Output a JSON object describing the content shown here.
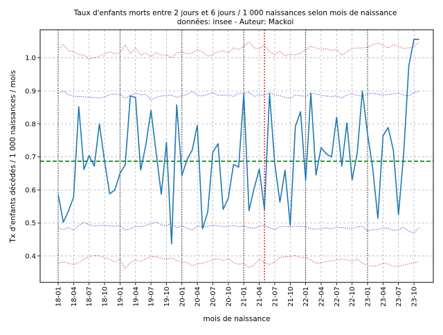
{
  "chart_data": {
    "type": "line",
    "title": "Taux d'enfants morts entre 2 jours et 6 jours / 1 000 naissances selon mois de naissance",
    "subtitle": "données: insee - Auteur: Mackoi",
    "xlabel": "mois de naissance",
    "ylabel": "Tx d'enfants décédés / 1 000 naissances / mois",
    "ylim": [
      0.32,
      1.085
    ],
    "yticks": [
      0.4,
      0.5,
      0.6,
      0.7,
      0.8,
      0.9,
      1.0
    ],
    "ytick_labels": [
      "0.4",
      "0.5",
      "0.6",
      "0.7",
      "0.8",
      "0.9",
      "1.0"
    ],
    "xtick_labels": [
      "18-01",
      "18-04",
      "18-07",
      "18-10",
      "19-01",
      "19-04",
      "19-07",
      "19-10",
      "20-01",
      "20-04",
      "20-07",
      "20-10",
      "21-01",
      "21-04",
      "21-07",
      "21-10",
      "22-01",
      "22-04",
      "22-07",
      "22-10",
      "23-01",
      "23-04",
      "23-07",
      "23-10"
    ],
    "grid": true,
    "mean_line": 0.687,
    "year_separators": [
      "18-01",
      "19-01",
      "20-01",
      "21-01",
      "22-01",
      "23-01"
    ],
    "highlight_month": "21-05",
    "months": [
      "18-01",
      "18-02",
      "18-03",
      "18-04",
      "18-05",
      "18-06",
      "18-07",
      "18-08",
      "18-09",
      "18-10",
      "18-11",
      "18-12",
      "19-01",
      "19-02",
      "19-03",
      "19-04",
      "19-05",
      "19-06",
      "19-07",
      "19-08",
      "19-09",
      "19-10",
      "19-11",
      "19-12",
      "20-01",
      "20-02",
      "20-03",
      "20-04",
      "20-05",
      "20-06",
      "20-07",
      "20-08",
      "20-09",
      "20-10",
      "20-11",
      "20-12",
      "21-01",
      "21-02",
      "21-03",
      "21-04",
      "21-05",
      "21-06",
      "21-07",
      "21-08",
      "21-09",
      "21-10",
      "21-11",
      "21-12",
      "22-01",
      "22-02",
      "22-03",
      "22-04",
      "22-05",
      "22-06",
      "22-07",
      "22-08",
      "22-09",
      "22-10",
      "22-11",
      "22-12",
      "23-01",
      "23-02",
      "23-03",
      "23-04",
      "23-05",
      "23-06",
      "23-07",
      "23-08",
      "23-09",
      "23-10",
      "23-11"
    ],
    "series": [
      {
        "values": [
          0.587,
          0.502,
          0.536,
          0.578,
          0.852,
          0.662,
          0.704,
          0.672,
          0.8,
          0.687,
          0.588,
          0.6,
          0.65,
          0.677,
          0.884,
          0.88,
          0.66,
          0.736,
          0.841,
          0.713,
          0.587,
          0.744,
          0.437,
          0.858,
          0.644,
          0.692,
          0.721,
          0.796,
          0.482,
          0.533,
          0.714,
          0.74,
          0.541,
          0.576,
          0.677,
          0.669,
          0.891,
          0.537,
          0.604,
          0.663,
          0.541,
          0.891,
          0.68,
          0.563,
          0.66,
          0.492,
          0.792,
          0.837,
          0.628,
          0.893,
          0.645,
          0.728,
          0.709,
          0.7,
          0.82,
          0.672,
          0.803,
          0.63,
          0.712,
          0.899,
          0.769,
          0.665,
          0.514,
          0.764,
          0.789,
          0.72,
          0.525,
          0.709,
          0.976,
          1.056,
          1.056
        ],
        "color": "#1f77b4"
      },
      {
        "values": [
          0.893,
          0.9,
          0.888,
          0.884,
          0.883,
          0.882,
          0.881,
          0.88,
          0.878,
          0.882,
          0.888,
          0.89,
          0.889,
          0.878,
          0.886,
          0.892,
          0.888,
          0.889,
          0.873,
          0.88,
          0.884,
          0.886,
          0.887,
          0.88,
          0.885,
          0.889,
          0.898,
          0.886,
          0.885,
          0.889,
          0.895,
          0.886,
          0.887,
          0.888,
          0.883,
          0.893,
          0.893,
          0.896,
          0.883,
          0.888,
          0.886,
          0.895,
          0.887,
          0.885,
          0.88,
          0.877,
          0.888,
          0.885,
          0.883,
          0.893,
          0.89,
          0.887,
          0.884,
          0.883,
          0.885,
          0.879,
          0.887,
          0.891,
          0.886,
          0.885,
          0.89,
          0.893,
          0.89,
          0.887,
          0.889,
          0.891,
          0.893,
          0.887,
          0.885,
          0.895,
          0.9
        ],
        "color": "#3333dd"
      },
      {
        "values": [
          0.486,
          0.48,
          0.486,
          0.479,
          0.492,
          0.502,
          0.495,
          0.491,
          0.492,
          0.493,
          0.491,
          0.49,
          0.491,
          0.478,
          0.482,
          0.49,
          0.488,
          0.493,
          0.497,
          0.503,
          0.494,
          0.493,
          0.498,
          0.486,
          0.491,
          0.484,
          0.478,
          0.491,
          0.487,
          0.49,
          0.493,
          0.491,
          0.489,
          0.49,
          0.492,
          0.489,
          0.49,
          0.486,
          0.484,
          0.49,
          0.493,
          0.485,
          0.481,
          0.488,
          0.49,
          0.487,
          0.49,
          0.489,
          0.488,
          0.482,
          0.481,
          0.483,
          0.485,
          0.482,
          0.487,
          0.486,
          0.484,
          0.483,
          0.488,
          0.49,
          0.476,
          0.48,
          0.479,
          0.485,
          0.484,
          0.477,
          0.48,
          0.487,
          0.475,
          0.47,
          0.486
        ],
        "color": "#3333dd"
      },
      {
        "values": [
          1.025,
          1.04,
          1.022,
          1.018,
          1.01,
          1.008,
          0.997,
          1.0,
          1.005,
          1.012,
          1.018,
          1.012,
          1.015,
          1.04,
          1.012,
          1.03,
          1.008,
          1.015,
          1.004,
          1.016,
          1.008,
          1.01,
          1.0,
          1.015,
          1.018,
          1.012,
          1.014,
          1.025,
          1.018,
          1.005,
          1.01,
          1.018,
          1.022,
          1.014,
          1.03,
          1.025,
          1.035,
          1.048,
          1.03,
          1.028,
          1.04,
          1.018,
          1.01,
          1.02,
          1.005,
          1.012,
          1.008,
          1.014,
          1.025,
          1.035,
          1.03,
          1.025,
          1.028,
          1.022,
          1.025,
          1.008,
          1.018,
          1.028,
          1.03,
          1.03,
          1.032,
          1.04,
          1.045,
          1.038,
          1.03,
          1.04,
          1.035,
          1.028,
          1.03,
          1.035,
          1.048
        ],
        "color": "#dd3333"
      },
      {
        "values": [
          0.378,
          0.382,
          0.378,
          0.374,
          0.38,
          0.39,
          0.398,
          0.402,
          0.4,
          0.395,
          0.39,
          0.382,
          0.39,
          0.362,
          0.38,
          0.388,
          0.384,
          0.392,
          0.398,
          0.398,
          0.392,
          0.39,
          0.394,
          0.386,
          0.382,
          0.38,
          0.37,
          0.376,
          0.378,
          0.383,
          0.388,
          0.392,
          0.386,
          0.392,
          0.38,
          0.375,
          0.378,
          0.365,
          0.372,
          0.39,
          0.38,
          0.374,
          0.382,
          0.395,
          0.398,
          0.398,
          0.402,
          0.394,
          0.396,
          0.388,
          0.378,
          0.38,
          0.383,
          0.386,
          0.388,
          0.39,
          0.388,
          0.384,
          0.39,
          0.378,
          0.372,
          0.368,
          0.372,
          0.378,
          0.376,
          0.368,
          0.37,
          0.372,
          0.376,
          0.38,
          0.382
        ],
        "color": "#dd3333"
      }
    ]
  }
}
